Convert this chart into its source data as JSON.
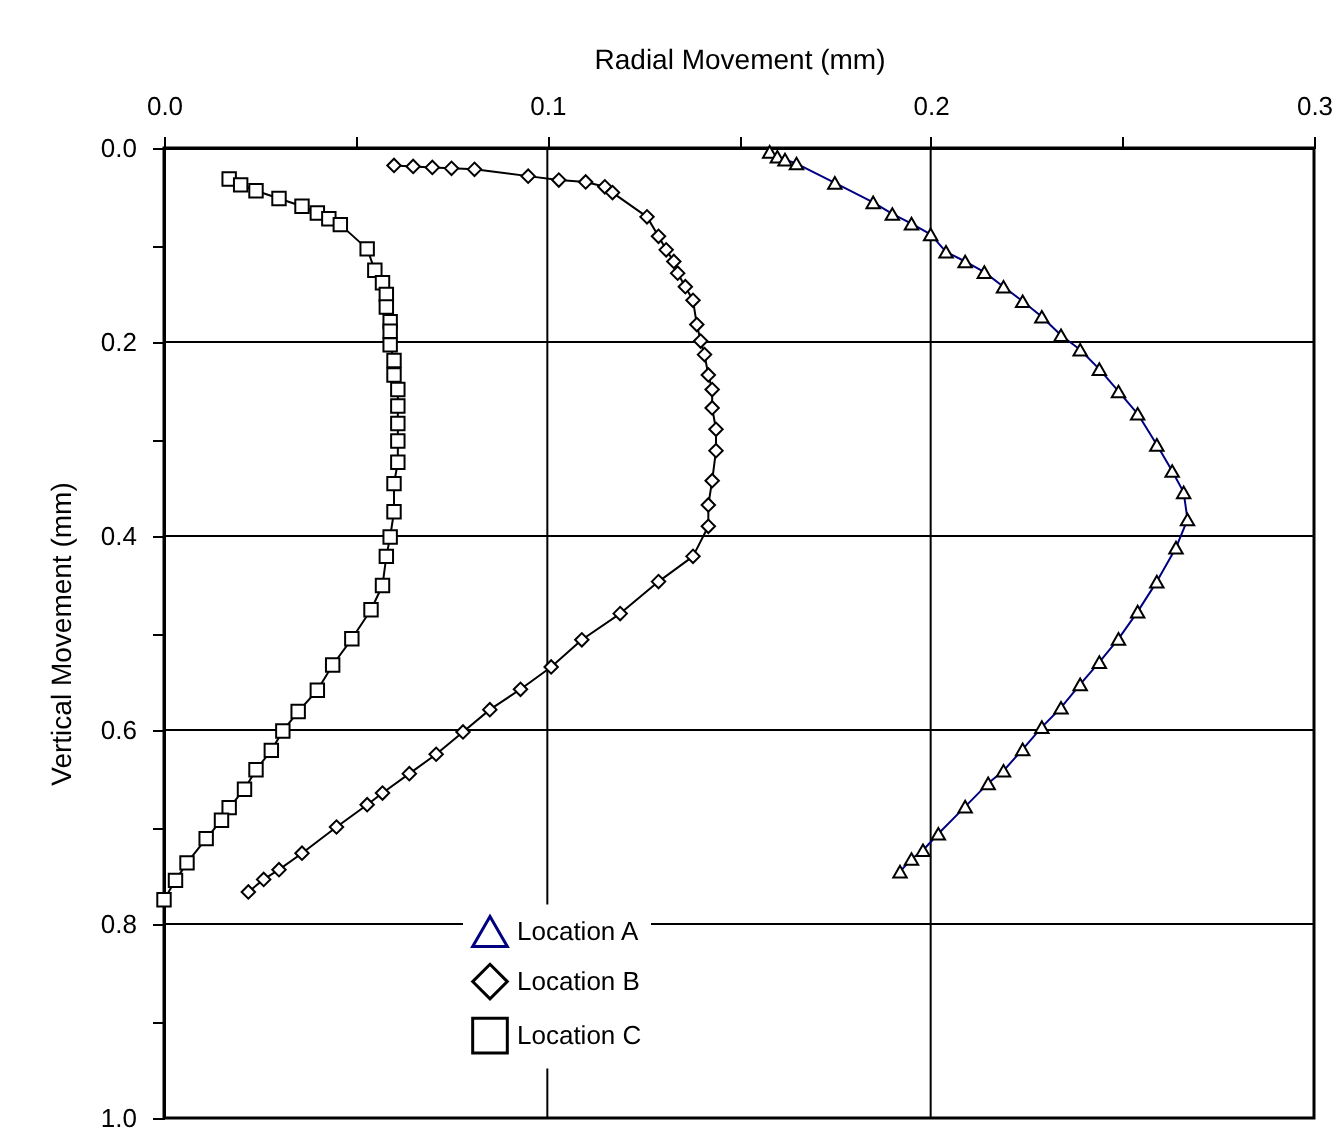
{
  "chart_data": {
    "type": "line",
    "xlabel": "Radial Movement (mm)",
    "ylabel": "Vertical Movement (mm)",
    "xlim": [
      0,
      0.3
    ],
    "ylim": [
      1.0,
      0
    ],
    "xticks": [
      {
        "value": 0,
        "label": "0.0"
      },
      {
        "value": 0.05,
        "label": null
      },
      {
        "value": 0.1,
        "label": "0.1"
      },
      {
        "value": 0.15,
        "label": null
      },
      {
        "value": 0.2,
        "label": "0.2"
      },
      {
        "value": 0.25,
        "label": null
      },
      {
        "value": 0.3,
        "label": "0.3"
      }
    ],
    "yticks": [
      {
        "value": 0,
        "label": "0.0"
      },
      {
        "value": 0.1,
        "label": null
      },
      {
        "value": 0.2,
        "label": "0.2"
      },
      {
        "value": 0.3,
        "label": null
      },
      {
        "value": 0.4,
        "label": "0.4"
      },
      {
        "value": 0.5,
        "label": null
      },
      {
        "value": 0.6,
        "label": "0.6"
      },
      {
        "value": 0.7,
        "label": null
      },
      {
        "value": 0.8,
        "label": "0.8"
      },
      {
        "value": 0.9,
        "label": null
      },
      {
        "value": 1.0,
        "label": "1.0"
      }
    ],
    "grid": true,
    "legend": "bottom",
    "series": [
      {
        "name": "Location A",
        "color": "#000080",
        "marker": "triangle",
        "x": [
          0.158,
          0.16,
          0.162,
          0.165,
          0.175,
          0.185,
          0.19,
          0.195,
          0.2,
          0.204,
          0.209,
          0.214,
          0.219,
          0.224,
          0.229,
          0.234,
          0.239,
          0.244,
          0.249,
          0.254,
          0.259,
          0.263,
          0.266,
          0.267,
          0.264,
          0.259,
          0.254,
          0.249,
          0.244,
          0.239,
          0.234,
          0.229,
          0.224,
          0.219,
          0.215,
          0.209,
          0.202,
          0.198,
          0.195,
          0.192
        ],
        "values": [
          0.004,
          0.009,
          0.012,
          0.016,
          0.036,
          0.056,
          0.068,
          0.078,
          0.089,
          0.107,
          0.117,
          0.128,
          0.143,
          0.158,
          0.174,
          0.193,
          0.208,
          0.228,
          0.251,
          0.274,
          0.306,
          0.333,
          0.355,
          0.383,
          0.412,
          0.447,
          0.478,
          0.506,
          0.53,
          0.553,
          0.577,
          0.597,
          0.62,
          0.642,
          0.655,
          0.679,
          0.707,
          0.724,
          0.733,
          0.746
        ]
      },
      {
        "name": "Location B",
        "color": "#000000",
        "marker": "diamond",
        "x": [
          0.06,
          0.065,
          0.07,
          0.075,
          0.081,
          0.095,
          0.103,
          0.11,
          0.115,
          0.117,
          0.126,
          0.129,
          0.131,
          0.133,
          0.134,
          0.136,
          0.138,
          0.139,
          0.14,
          0.141,
          0.142,
          0.143,
          0.143,
          0.144,
          0.144,
          0.143,
          0.142,
          0.142,
          0.138,
          0.129,
          0.119,
          0.109,
          0.101,
          0.093,
          0.085,
          0.078,
          0.071,
          0.064,
          0.057,
          0.053,
          0.045,
          0.036,
          0.03,
          0.026,
          0.022
        ],
        "values": [
          0.018,
          0.019,
          0.02,
          0.021,
          0.022,
          0.029,
          0.033,
          0.035,
          0.04,
          0.046,
          0.071,
          0.091,
          0.105,
          0.117,
          0.129,
          0.143,
          0.157,
          0.182,
          0.199,
          0.213,
          0.234,
          0.249,
          0.268,
          0.29,
          0.312,
          0.343,
          0.368,
          0.39,
          0.421,
          0.447,
          0.48,
          0.507,
          0.535,
          0.558,
          0.579,
          0.602,
          0.625,
          0.645,
          0.665,
          0.677,
          0.7,
          0.727,
          0.744,
          0.754,
          0.767
        ]
      },
      {
        "name": "Location C",
        "color": "#000000",
        "marker": "square",
        "x": [
          0.017,
          0.02,
          0.024,
          0.03,
          0.036,
          0.04,
          0.043,
          0.046,
          0.053,
          0.055,
          0.057,
          0.058,
          0.058,
          0.059,
          0.059,
          0.059,
          0.06,
          0.06,
          0.061,
          0.061,
          0.061,
          0.061,
          0.061,
          0.06,
          0.06,
          0.059,
          0.058,
          0.057,
          0.054,
          0.049,
          0.044,
          0.04,
          0.035,
          0.031,
          0.028,
          0.024,
          0.021,
          0.017,
          0.015,
          0.011,
          0.006,
          0.003,
          0.0
        ],
        "values": [
          0.032,
          0.038,
          0.044,
          0.052,
          0.06,
          0.067,
          0.073,
          0.079,
          0.104,
          0.126,
          0.139,
          0.151,
          0.164,
          0.179,
          0.189,
          0.203,
          0.219,
          0.234,
          0.249,
          0.266,
          0.284,
          0.302,
          0.324,
          0.346,
          0.375,
          0.401,
          0.421,
          0.451,
          0.476,
          0.506,
          0.533,
          0.559,
          0.581,
          0.601,
          0.621,
          0.641,
          0.661,
          0.68,
          0.693,
          0.712,
          0.737,
          0.755,
          0.775
        ]
      }
    ]
  }
}
